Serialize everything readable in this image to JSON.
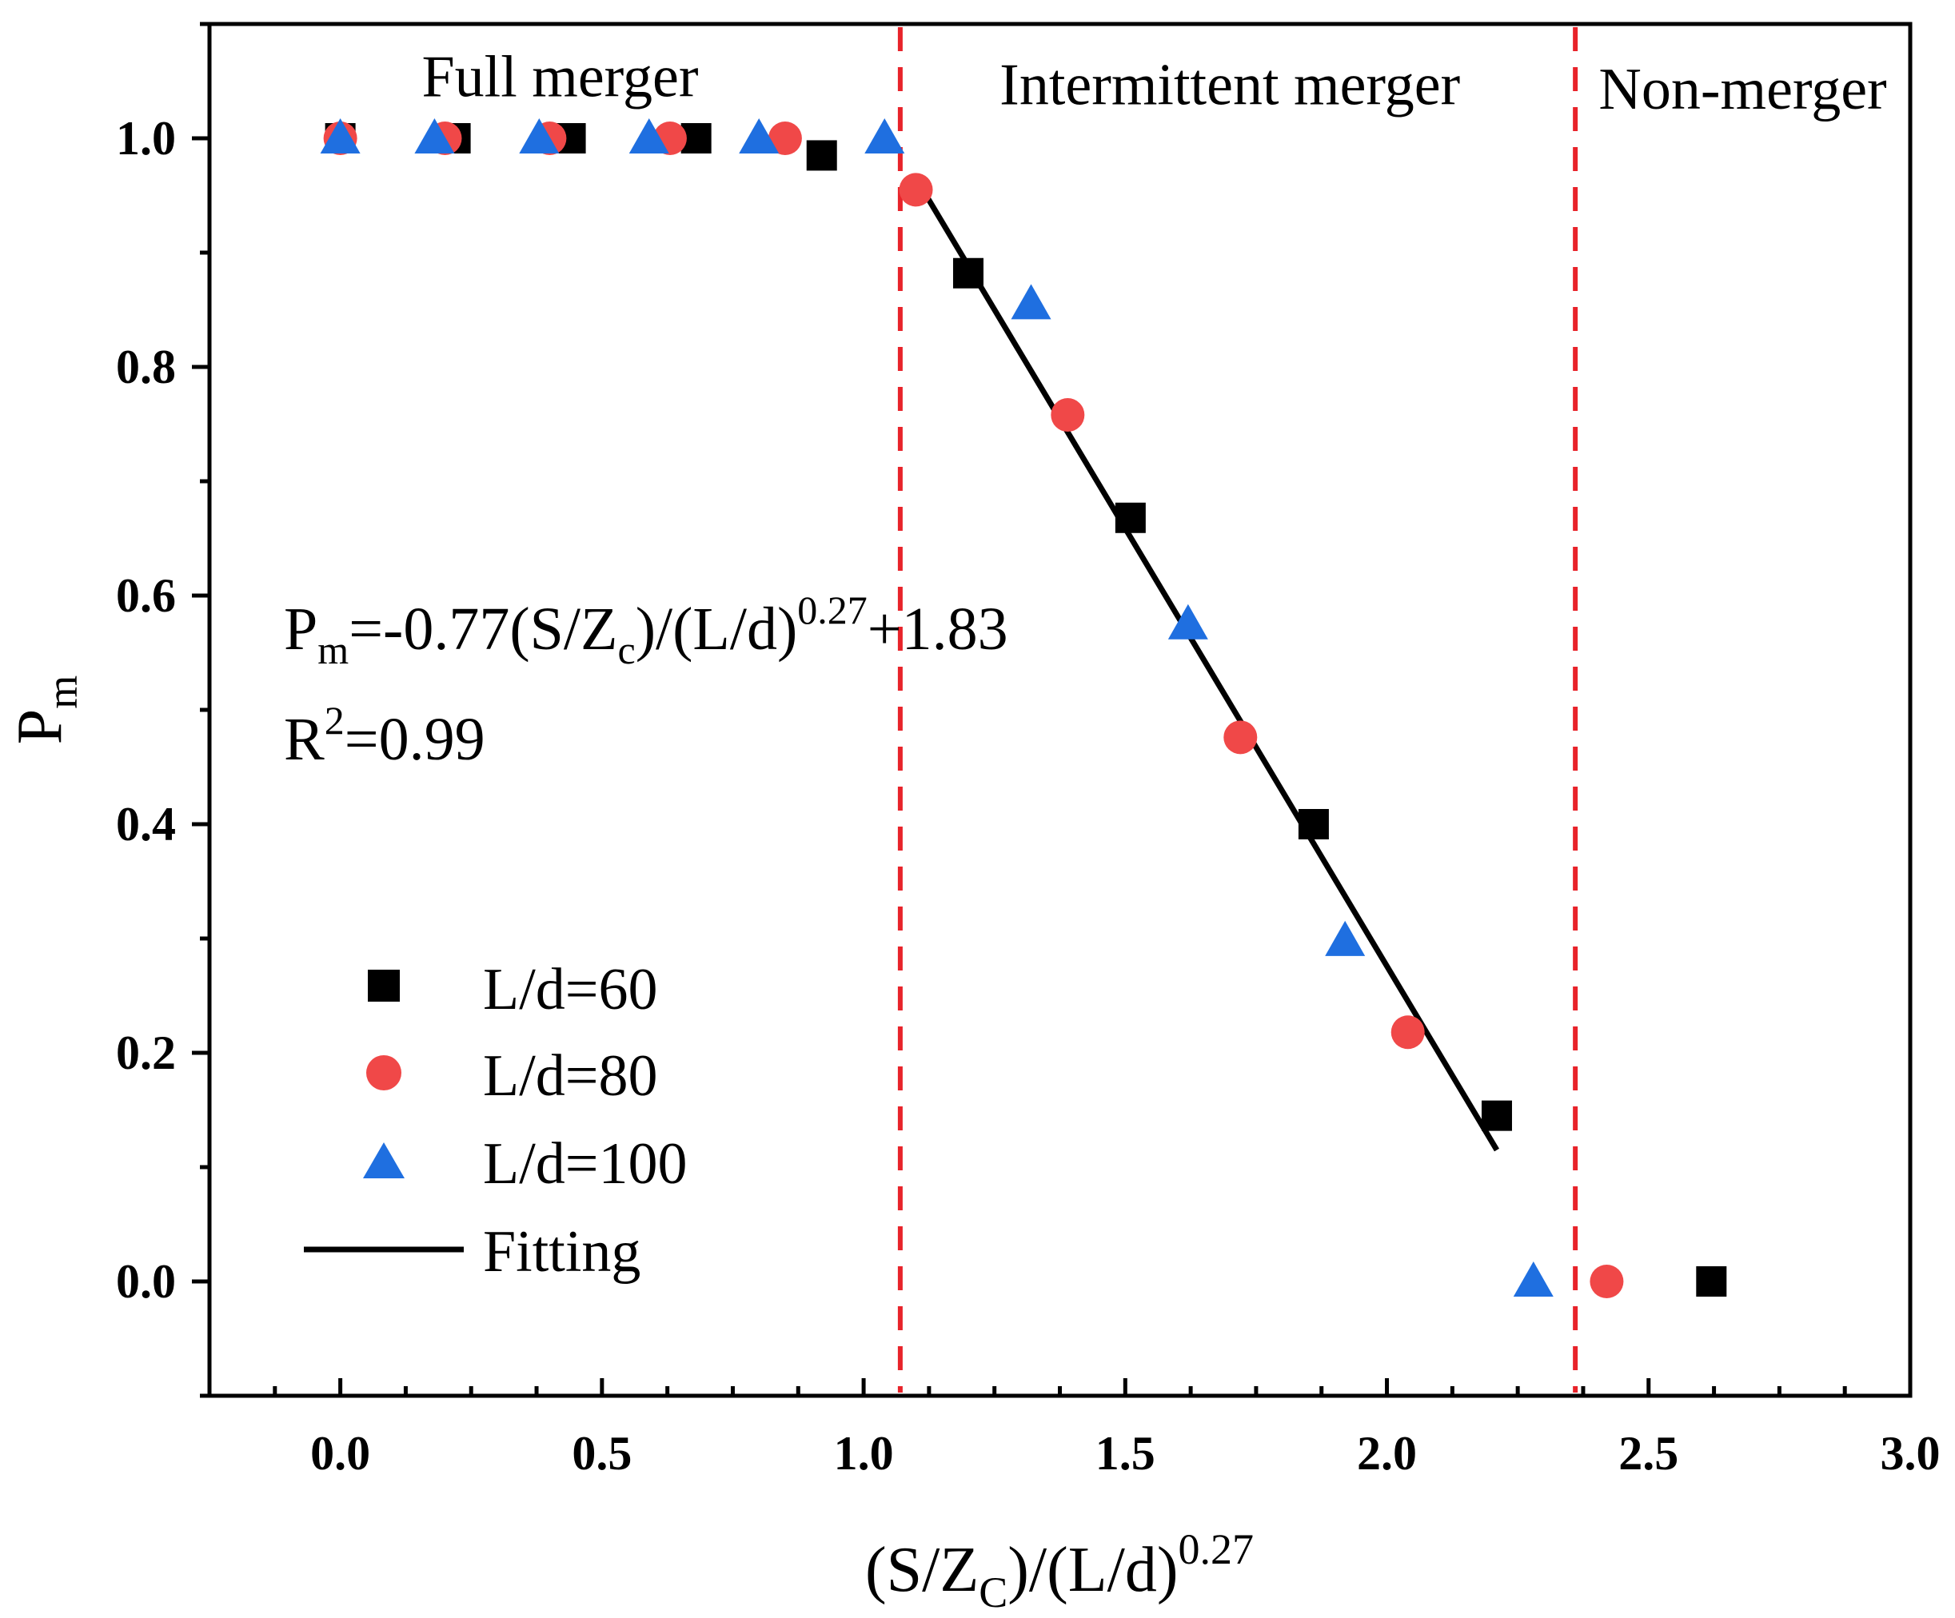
{
  "chart_data": {
    "type": "scatter",
    "title": "",
    "xlabel": {
      "main_open": "(S/Z",
      "sub": "C",
      "main_close": ")/(L/d)",
      "sup": "0.27"
    },
    "ylabel": {
      "main": "P",
      "sub": "m"
    },
    "xlim": [
      -0.25,
      3.0
    ],
    "ylim": [
      -0.1,
      1.1
    ],
    "xticks": [
      0.0,
      0.5,
      1.0,
      1.5,
      2.0,
      2.5,
      3.0
    ],
    "xtick_labels": [
      "0.0",
      "0.5",
      "1.0",
      "1.5",
      "2.0",
      "2.5",
      "3.0"
    ],
    "yticks": [
      0.0,
      0.2,
      0.4,
      0.6,
      0.8,
      1.0
    ],
    "ytick_labels": [
      "0.0",
      "0.2",
      "0.4",
      "0.6",
      "0.8",
      "1.0"
    ],
    "grid": false,
    "series": [
      {
        "name": "L/d=60",
        "marker": "square",
        "color": "#000000",
        "x": [
          0.0,
          0.22,
          0.44,
          0.68,
          0.92,
          1.2,
          1.51,
          1.86,
          2.21,
          2.62
        ],
        "y": [
          1.0,
          1.0,
          1.0,
          1.0,
          0.985,
          0.882,
          0.668,
          0.4,
          0.145,
          0.0
        ]
      },
      {
        "name": "L/d=80",
        "marker": "circle",
        "color": "#f04848",
        "x": [
          0.0,
          0.2,
          0.4,
          0.63,
          0.85,
          1.1,
          1.39,
          1.72,
          2.04,
          2.42
        ],
        "y": [
          1.0,
          1.0,
          1.0,
          1.0,
          1.0,
          0.955,
          0.758,
          0.476,
          0.218,
          0.0
        ]
      },
      {
        "name": "L/d=100",
        "marker": "triangle",
        "color": "#1f6fe0",
        "x": [
          0.0,
          0.18,
          0.38,
          0.59,
          0.8,
          1.04,
          1.32,
          1.62,
          1.92,
          2.28
        ],
        "y": [
          1.0,
          1.0,
          1.0,
          1.0,
          1.0,
          1.0,
          0.855,
          0.575,
          0.298,
          0.0
        ]
      }
    ],
    "fit_line": {
      "name": "Fitting",
      "color": "#000000",
      "x": [
        1.1,
        2.21
      ],
      "y": [
        0.965,
        0.115
      ]
    },
    "vlines": {
      "color": "#e8232a",
      "x": [
        1.07,
        2.36
      ]
    },
    "region_labels": [
      {
        "text": "Full merger",
        "x": 0.42,
        "y": 1.055
      },
      {
        "text": "Intermittent merger",
        "x": 1.7,
        "y": 1.048
      },
      {
        "text": "Non-merger",
        "x": 2.68,
        "y": 1.044
      }
    ],
    "equation": {
      "a": "P",
      "a_sub": "m",
      "b": "=-0.77(S/Z",
      "b_sub": "c",
      "c": ")/(L/d)",
      "c_sup": "0.27",
      "d": "+1.83"
    },
    "r_squared": {
      "a": "R",
      "a_sup": "2",
      "b": "=0.99"
    },
    "legend_position": "lower-left"
  }
}
